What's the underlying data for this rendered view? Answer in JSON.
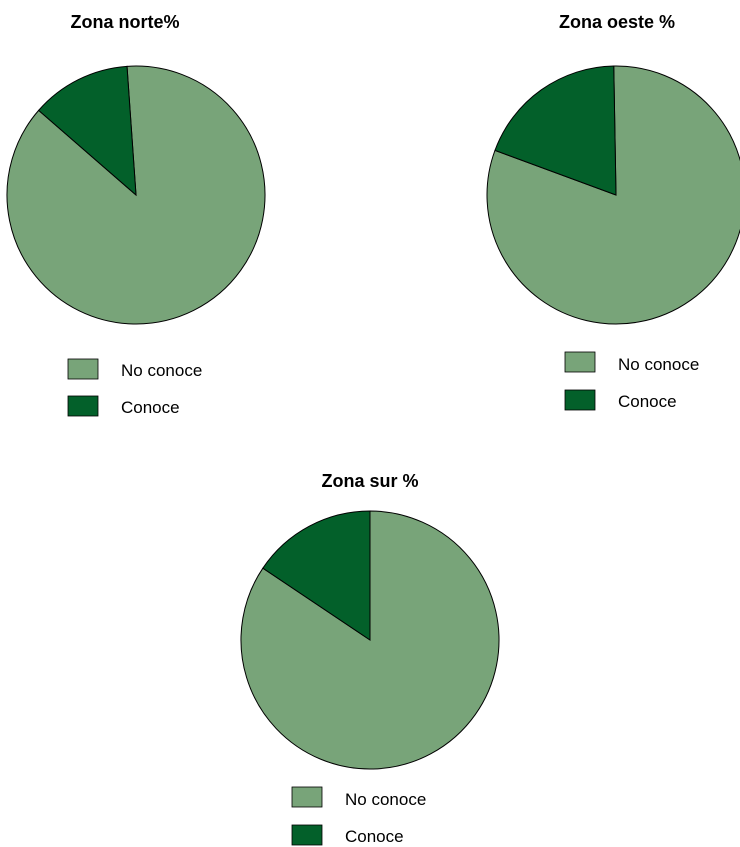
{
  "colors": {
    "no_conoce": "#78a479",
    "conoce": "#03602a",
    "stroke": "#000000"
  },
  "chart_data": [
    {
      "type": "pie",
      "title": "Zona norte%",
      "slices": [
        {
          "label": "No conoce",
          "value": 87.5,
          "color": "#78a479"
        },
        {
          "label": "Conoce",
          "value": 12.5,
          "color": "#03602a"
        }
      ]
    },
    {
      "type": "pie",
      "title": "Zona oeste %",
      "slices": [
        {
          "label": "No conoce",
          "value": 80.9,
          "color": "#78a479"
        },
        {
          "label": "Conoce",
          "value": 19.1,
          "color": "#03602a"
        }
      ]
    },
    {
      "type": "pie",
      "title": "Zona sur %",
      "slices": [
        {
          "label": "No conoce",
          "value": 84.4,
          "color": "#78a479"
        },
        {
          "label": "Conoce",
          "value": 15.6,
          "color": "#03602a"
        }
      ]
    }
  ]
}
